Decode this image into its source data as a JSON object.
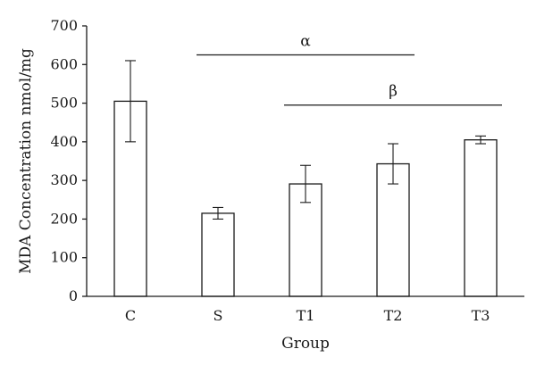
{
  "chart_data": {
    "type": "bar",
    "categories": [
      "C",
      "S",
      "T1",
      "T2",
      "T3"
    ],
    "values": [
      505,
      215,
      291,
      343,
      405
    ],
    "errors": [
      105,
      15,
      48,
      52,
      10
    ],
    "xlabel": "Group",
    "ylabel": "MDA Concentration nmol/mg",
    "ylim": [
      0,
      700
    ],
    "yticks": [
      0,
      100,
      200,
      300,
      400,
      500,
      600,
      700
    ],
    "grid": false,
    "significance": [
      {
        "label": "α",
        "from": "S",
        "to": "T2",
        "y": 625
      },
      {
        "label": "β",
        "from": "T1",
        "to": "T3",
        "y": 495
      }
    ]
  }
}
